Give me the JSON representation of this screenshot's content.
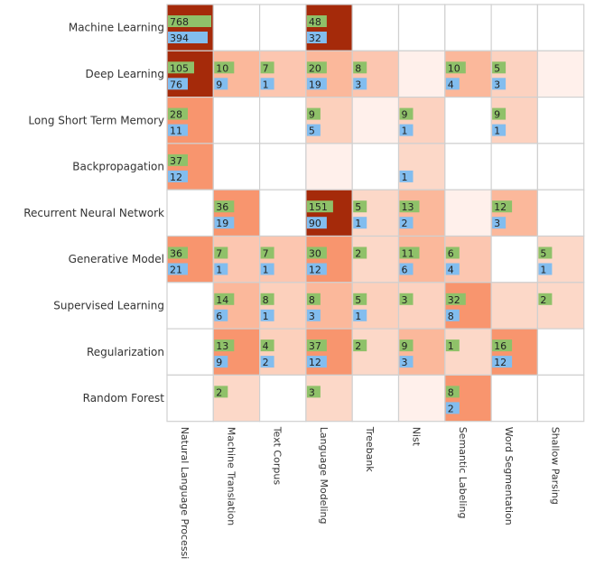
{
  "chart_data": {
    "type": "heatmap",
    "rows": [
      "Machine Learning",
      "Deep Learning",
      "Long Short Term Memory",
      "Backpropagation",
      "Recurrent Neural Network",
      "Generative Model",
      "Supervised Learning",
      "Regularization",
      "Random Forest"
    ],
    "columns": [
      "Natural Language Processi",
      "Machine Translation",
      "Text Corpus",
      "Language Modeling",
      "Treebank",
      "Nist",
      "Semantic Labeling",
      "Word Segmentation",
      "Shallow Parsing"
    ],
    "cell_colors": [
      [
        "#a52a0a",
        "#ffffff",
        "#ffffff",
        "#a52a0a",
        "#ffffff",
        "#ffffff",
        "#ffffff",
        "#ffffff",
        "#ffffff"
      ],
      [
        "#a52a0a",
        "#fbb89b",
        "#fcc6b0",
        "#fbb89b",
        "#fcc6b0",
        "#fff0eb",
        "#fbb89b",
        "#fcd2c0",
        "#fff0eb"
      ],
      [
        "#f8956e",
        "#ffffff",
        "#ffffff",
        "#fcd0bc",
        "#fff0eb",
        "#fcd2c0",
        "#ffffff",
        "#fcd2c0",
        "#ffffff"
      ],
      [
        "#f8956e",
        "#ffffff",
        "#ffffff",
        "#fff0eb",
        "#ffffff",
        "#fcd8c8",
        "#ffffff",
        "#ffffff",
        "#ffffff"
      ],
      [
        "#ffffff",
        "#f8956e",
        "#ffffff",
        "#a52a0a",
        "#fcd8c8",
        "#fbb89b",
        "#fff0eb",
        "#fbb89b",
        "#ffffff"
      ],
      [
        "#f8956e",
        "#fcc6b0",
        "#fcc6b0",
        "#f8956e",
        "#fcd8c8",
        "#fbb89b",
        "#fcc6b0",
        "#ffffff",
        "#fcd8c8"
      ],
      [
        "#ffffff",
        "#fbb89b",
        "#fcd0bc",
        "#fbb89b",
        "#fcd0bc",
        "#fcd2c0",
        "#f8956e",
        "#fcd8c8",
        "#fcd8c8"
      ],
      [
        "#ffffff",
        "#f8956e",
        "#fcd0bc",
        "#f8956e",
        "#fcd8c8",
        "#fbb89b",
        "#fcd8c8",
        "#f8956e",
        "#ffffff"
      ],
      [
        "#ffffff",
        "#fcd8c8",
        "#ffffff",
        "#fcd8c8",
        "#ffffff",
        "#fff0eb",
        "#f8956e",
        "#ffffff",
        "#ffffff"
      ]
    ],
    "values_a": [
      [
        768,
        null,
        null,
        48,
        null,
        null,
        null,
        null,
        null
      ],
      [
        105,
        10,
        7,
        20,
        8,
        null,
        10,
        5,
        null
      ],
      [
        28,
        null,
        null,
        9,
        null,
        9,
        null,
        9,
        null
      ],
      [
        37,
        null,
        null,
        null,
        null,
        null,
        null,
        null,
        null
      ],
      [
        null,
        36,
        null,
        151,
        5,
        13,
        null,
        12,
        null
      ],
      [
        36,
        7,
        7,
        30,
        2,
        11,
        6,
        null,
        5
      ],
      [
        null,
        14,
        8,
        8,
        5,
        3,
        32,
        null,
        2
      ],
      [
        null,
        13,
        4,
        37,
        2,
        9,
        1,
        16,
        null
      ],
      [
        null,
        2,
        null,
        3,
        null,
        null,
        8,
        null,
        null
      ]
    ],
    "values_b": [
      [
        394,
        null,
        null,
        32,
        null,
        null,
        null,
        null,
        null
      ],
      [
        76,
        9,
        1,
        19,
        3,
        null,
        4,
        3,
        null
      ],
      [
        11,
        null,
        null,
        5,
        null,
        1,
        null,
        1,
        null
      ],
      [
        12,
        null,
        null,
        null,
        null,
        1,
        null,
        null,
        null
      ],
      [
        null,
        19,
        null,
        90,
        1,
        2,
        null,
        3,
        null
      ],
      [
        21,
        1,
        1,
        12,
        null,
        6,
        4,
        null,
        1
      ],
      [
        null,
        6,
        1,
        3,
        1,
        null,
        8,
        null,
        null
      ],
      [
        null,
        9,
        2,
        12,
        null,
        3,
        null,
        12,
        null
      ],
      [
        null,
        null,
        null,
        null,
        null,
        null,
        2,
        null,
        null
      ]
    ],
    "colors": {
      "bar_a": "#8fc169",
      "bar_b": "#82bdef",
      "grid": "#d0d0d0"
    }
  }
}
